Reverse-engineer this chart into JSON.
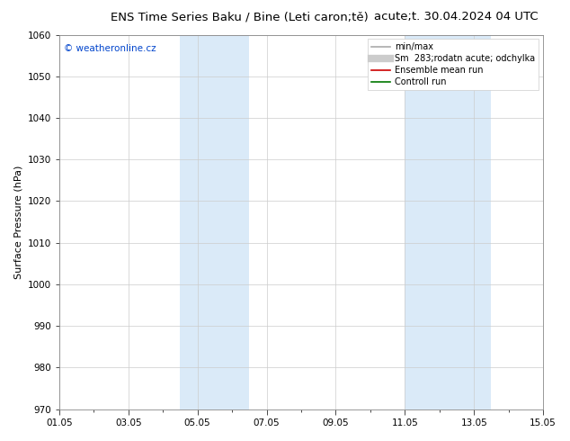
{
  "title_left": "ENS Time Series Baku / Bine (Leti caron;tě)",
  "title_right": "acute;t. 30.04.2024 04 UTC",
  "ylabel": "Surface Pressure (hPa)",
  "ymin": 970,
  "ymax": 1060,
  "ytick_step": 10,
  "xlim": [
    0,
    14
  ],
  "xtick_labels": [
    "01.05",
    "03.05",
    "05.05",
    "07.05",
    "09.05",
    "11.05",
    "13.05",
    "15.05"
  ],
  "xtick_positions": [
    0,
    2,
    4,
    6,
    8,
    10,
    12,
    14
  ],
  "shaded_bands": [
    {
      "xstart_day": 3.5,
      "xend_day": 5.5
    },
    {
      "xstart_day": 10.0,
      "xend_day": 12.5
    }
  ],
  "shade_color": "#daeaf8",
  "background_color": "#ffffff",
  "plot_bg_color": "#ffffff",
  "watermark": "© weatheronline.cz",
  "watermark_color": "#0044cc",
  "legend_items": [
    {
      "label": "min/max",
      "color": "#aaaaaa",
      "lw": 1.2,
      "type": "line"
    },
    {
      "label": "Sm  283;rodatn acute; odchylka",
      "color": "#cccccc",
      "lw": 6,
      "type": "line"
    },
    {
      "label": "Ensemble mean run",
      "color": "#cc0000",
      "lw": 1.2,
      "type": "line"
    },
    {
      "label": "Controll run",
      "color": "#007700",
      "lw": 1.2,
      "type": "line"
    }
  ],
  "grid_color": "#cccccc",
  "title_fontsize": 9.5,
  "ylabel_fontsize": 8,
  "tick_fontsize": 7.5,
  "watermark_fontsize": 7.5,
  "legend_fontsize": 7
}
